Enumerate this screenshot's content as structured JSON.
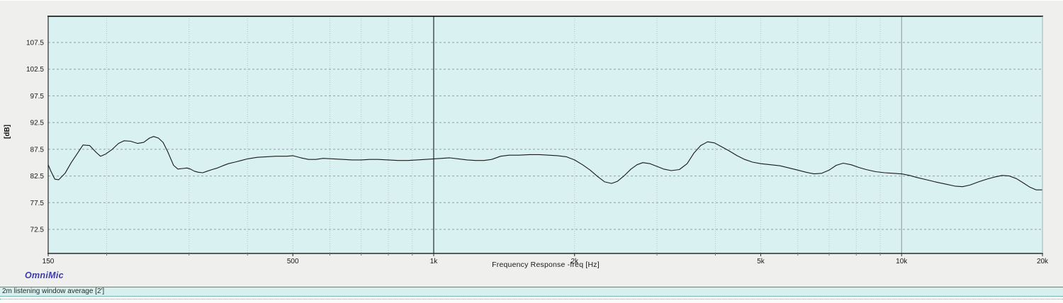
{
  "branding": {
    "logo_text": "OmniMic"
  },
  "legend_bar": {
    "trace_label": "2m listening window average [2']"
  },
  "chart_data": {
    "type": "line",
    "title": "",
    "xlabel": "Frequency Response -freq [Hz]",
    "ylabel": "[dB]",
    "x_scale": "log",
    "xlim": [
      150,
      20000
    ],
    "ylim": [
      68,
      112.5
    ],
    "grid": true,
    "legend_position": "bottom-bar",
    "colors": {
      "plot_bg": "#d9f1f0",
      "outer_bg": "#efefee",
      "h_grid": "#8fa2a2",
      "v_grid": "#b3c8c7",
      "border_dark": "#2b2b2b",
      "border_right": "#9fb3b3",
      "curve": "#1a1a1a",
      "cursor_1k": "#000000",
      "cursor_10k": "#8b9899"
    },
    "y_ticks": [
      107.5,
      102.5,
      97.5,
      92.5,
      87.5,
      82.5,
      77.5,
      72.5
    ],
    "x_ticks": [
      {
        "hz": 150,
        "label": "150"
      },
      {
        "hz": 500,
        "label": "500"
      },
      {
        "hz": 1000,
        "label": "1k"
      },
      {
        "hz": 2000,
        "label": "2k"
      },
      {
        "hz": 5000,
        "label": "5k"
      },
      {
        "hz": 10000,
        "label": "10k"
      },
      {
        "hz": 20000,
        "label": "20k"
      }
    ],
    "minor_gridlines_hz": [
      200,
      300,
      400,
      500,
      600,
      700,
      800,
      900,
      2000,
      3000,
      4000,
      5000,
      6000,
      7000,
      8000,
      9000
    ],
    "vertical_markers": [
      {
        "hz": 1000,
        "name": "cursor-1k-line",
        "color": "#000000"
      },
      {
        "hz": 10000,
        "name": "cursor-10k-line",
        "color": "#8b9899"
      }
    ],
    "series": [
      {
        "name": "2m listening window average [2']",
        "color": "#1a1a1a",
        "points": [
          [
            150,
            84.6
          ],
          [
            152,
            83.4
          ],
          [
            155,
            81.9
          ],
          [
            158,
            81.8
          ],
          [
            163,
            83.0
          ],
          [
            168,
            85.0
          ],
          [
            174,
            87.0
          ],
          [
            178,
            88.3
          ],
          [
            184,
            88.2
          ],
          [
            190,
            86.9
          ],
          [
            194,
            86.2
          ],
          [
            199,
            86.6
          ],
          [
            205,
            87.4
          ],
          [
            212,
            88.6
          ],
          [
            218,
            89.1
          ],
          [
            225,
            89.0
          ],
          [
            233,
            88.6
          ],
          [
            240,
            88.8
          ],
          [
            247,
            89.6
          ],
          [
            252,
            89.9
          ],
          [
            258,
            89.6
          ],
          [
            264,
            88.8
          ],
          [
            270,
            87.1
          ],
          [
            278,
            84.5
          ],
          [
            284,
            83.8
          ],
          [
            291,
            83.9
          ],
          [
            297,
            84.0
          ],
          [
            302,
            83.8
          ],
          [
            308,
            83.4
          ],
          [
            314,
            83.2
          ],
          [
            321,
            83.1
          ],
          [
            328,
            83.4
          ],
          [
            336,
            83.7
          ],
          [
            345,
            84.0
          ],
          [
            354,
            84.4
          ],
          [
            364,
            84.8
          ],
          [
            376,
            85.1
          ],
          [
            388,
            85.4
          ],
          [
            400,
            85.7
          ],
          [
            420,
            86.0
          ],
          [
            440,
            86.1
          ],
          [
            460,
            86.2
          ],
          [
            485,
            86.2
          ],
          [
            500,
            86.3
          ],
          [
            520,
            85.9
          ],
          [
            540,
            85.6
          ],
          [
            560,
            85.6
          ],
          [
            580,
            85.8
          ],
          [
            610,
            85.7
          ],
          [
            640,
            85.6
          ],
          [
            670,
            85.5
          ],
          [
            700,
            85.5
          ],
          [
            730,
            85.6
          ],
          [
            760,
            85.6
          ],
          [
            800,
            85.5
          ],
          [
            840,
            85.4
          ],
          [
            880,
            85.4
          ],
          [
            920,
            85.5
          ],
          [
            960,
            85.6
          ],
          [
            1000,
            85.7
          ],
          [
            1040,
            85.8
          ],
          [
            1080,
            85.9
          ],
          [
            1130,
            85.7
          ],
          [
            1180,
            85.5
          ],
          [
            1230,
            85.4
          ],
          [
            1280,
            85.4
          ],
          [
            1330,
            85.6
          ],
          [
            1390,
            86.2
          ],
          [
            1450,
            86.4
          ],
          [
            1520,
            86.4
          ],
          [
            1600,
            86.5
          ],
          [
            1680,
            86.5
          ],
          [
            1760,
            86.4
          ],
          [
            1840,
            86.3
          ],
          [
            1920,
            86.1
          ],
          [
            2000,
            85.5
          ],
          [
            2080,
            84.6
          ],
          [
            2160,
            83.6
          ],
          [
            2240,
            82.4
          ],
          [
            2320,
            81.4
          ],
          [
            2400,
            81.1
          ],
          [
            2470,
            81.5
          ],
          [
            2550,
            82.5
          ],
          [
            2640,
            83.8
          ],
          [
            2720,
            84.6
          ],
          [
            2800,
            85.0
          ],
          [
            2900,
            84.8
          ],
          [
            3000,
            84.3
          ],
          [
            3100,
            83.8
          ],
          [
            3220,
            83.5
          ],
          [
            3350,
            83.7
          ],
          [
            3480,
            84.8
          ],
          [
            3600,
            86.8
          ],
          [
            3720,
            88.2
          ],
          [
            3850,
            88.9
          ],
          [
            3980,
            88.7
          ],
          [
            4120,
            88.0
          ],
          [
            4280,
            87.2
          ],
          [
            4450,
            86.3
          ],
          [
            4620,
            85.6
          ],
          [
            4800,
            85.1
          ],
          [
            5000,
            84.8
          ],
          [
            5250,
            84.6
          ],
          [
            5500,
            84.4
          ],
          [
            5750,
            84.0
          ],
          [
            6000,
            83.6
          ],
          [
            6250,
            83.2
          ],
          [
            6500,
            82.9
          ],
          [
            6750,
            83.0
          ],
          [
            7000,
            83.6
          ],
          [
            7250,
            84.5
          ],
          [
            7500,
            84.9
          ],
          [
            7800,
            84.6
          ],
          [
            8100,
            84.1
          ],
          [
            8400,
            83.7
          ],
          [
            8800,
            83.3
          ],
          [
            9200,
            83.1
          ],
          [
            9600,
            83.0
          ],
          [
            10000,
            82.9
          ],
          [
            10400,
            82.6
          ],
          [
            10800,
            82.2
          ],
          [
            11300,
            81.8
          ],
          [
            11800,
            81.4
          ],
          [
            12400,
            81.0
          ],
          [
            13000,
            80.6
          ],
          [
            13500,
            80.5
          ],
          [
            14000,
            80.8
          ],
          [
            14600,
            81.4
          ],
          [
            15200,
            81.9
          ],
          [
            15800,
            82.3
          ],
          [
            16400,
            82.6
          ],
          [
            17000,
            82.5
          ],
          [
            17600,
            82.0
          ],
          [
            18200,
            81.2
          ],
          [
            18800,
            80.4
          ],
          [
            19400,
            79.9
          ],
          [
            20000,
            79.9
          ]
        ]
      }
    ]
  }
}
